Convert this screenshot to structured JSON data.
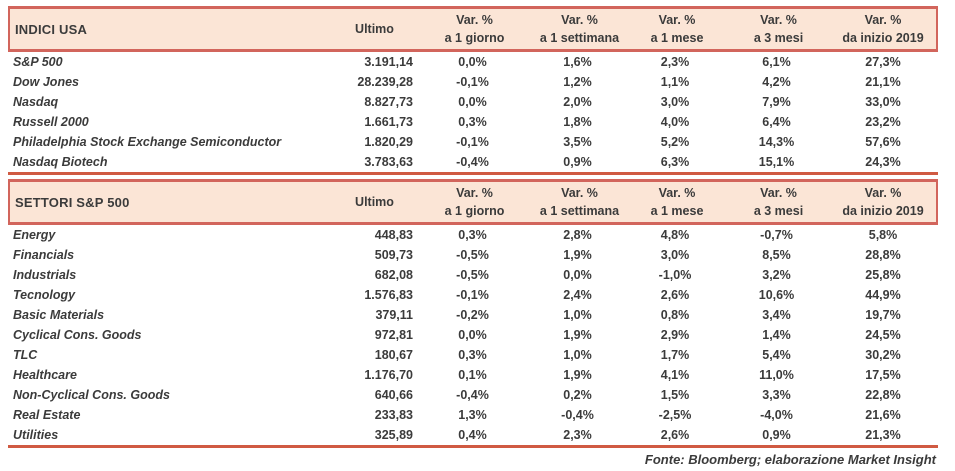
{
  "colors": {
    "band_bg": "#fbe5d6",
    "band_border": "#d2655c",
    "section_line": "#d05a42",
    "text": "#3b3b3b"
  },
  "columns": {
    "ultimo": "Ultimo",
    "var_label": "Var. %",
    "sub": [
      "a 1 giorno",
      "a 1 settimana",
      "a 1 mese",
      "a 3 mesi",
      "da inizio 2019"
    ]
  },
  "tables": [
    {
      "title": "INDICI USA",
      "rows": [
        {
          "name": "S&P 500",
          "ultimo": "3.191,14",
          "vals": [
            "0,0%",
            "1,6%",
            "2,3%",
            "6,1%",
            "27,3%"
          ]
        },
        {
          "name": "Dow Jones",
          "ultimo": "28.239,28",
          "vals": [
            "-0,1%",
            "1,2%",
            "1,1%",
            "4,2%",
            "21,1%"
          ]
        },
        {
          "name": "Nasdaq",
          "ultimo": "8.827,73",
          "vals": [
            "0,0%",
            "2,0%",
            "3,0%",
            "7,9%",
            "33,0%"
          ]
        },
        {
          "name": "Russell 2000",
          "ultimo": "1.661,73",
          "vals": [
            "0,3%",
            "1,8%",
            "4,0%",
            "6,4%",
            "23,2%"
          ]
        },
        {
          "name": "Philadelphia Stock Exchange Semiconductor",
          "ultimo": "1.820,29",
          "vals": [
            "-0,1%",
            "3,5%",
            "5,2%",
            "14,3%",
            "57,6%"
          ]
        },
        {
          "name": "Nasdaq Biotech",
          "ultimo": "3.783,63",
          "vals": [
            "-0,4%",
            "0,9%",
            "6,3%",
            "15,1%",
            "24,3%"
          ]
        }
      ]
    },
    {
      "title": "SETTORI S&P 500",
      "rows": [
        {
          "name": "Energy",
          "ultimo": "448,83",
          "vals": [
            "0,3%",
            "2,8%",
            "4,8%",
            "-0,7%",
            "5,8%"
          ]
        },
        {
          "name": "Financials",
          "ultimo": "509,73",
          "vals": [
            "-0,5%",
            "1,9%",
            "3,0%",
            "8,5%",
            "28,8%"
          ]
        },
        {
          "name": "Industrials",
          "ultimo": "682,08",
          "vals": [
            "-0,5%",
            "0,0%",
            "-1,0%",
            "3,2%",
            "25,8%"
          ]
        },
        {
          "name": "Tecnology",
          "ultimo": "1.576,83",
          "vals": [
            "-0,1%",
            "2,4%",
            "2,6%",
            "10,6%",
            "44,9%"
          ]
        },
        {
          "name": "Basic Materials",
          "ultimo": "379,11",
          "vals": [
            "-0,2%",
            "1,0%",
            "0,8%",
            "3,4%",
            "19,7%"
          ]
        },
        {
          "name": "Cyclical Cons. Goods",
          "ultimo": "972,81",
          "vals": [
            "0,0%",
            "1,9%",
            "2,9%",
            "1,4%",
            "24,5%"
          ]
        },
        {
          "name": "TLC",
          "ultimo": "180,67",
          "vals": [
            "0,3%",
            "1,0%",
            "1,7%",
            "5,4%",
            "30,2%"
          ]
        },
        {
          "name": "Healthcare",
          "ultimo": "1.176,70",
          "vals": [
            "0,1%",
            "1,9%",
            "4,1%",
            "11,0%",
            "17,5%"
          ]
        },
        {
          "name": "Non-Cyclical Cons. Goods",
          "ultimo": "640,66",
          "vals": [
            "-0,4%",
            "0,2%",
            "1,5%",
            "3,3%",
            "22,8%"
          ]
        },
        {
          "name": "Real Estate",
          "ultimo": "233,83",
          "vals": [
            "1,3%",
            "-0,4%",
            "-2,5%",
            "-4,0%",
            "21,6%"
          ]
        },
        {
          "name": "Utilities",
          "ultimo": "325,89",
          "vals": [
            "0,4%",
            "2,3%",
            "2,6%",
            "0,9%",
            "21,3%"
          ]
        }
      ]
    }
  ],
  "footer": {
    "text": "Fonte: Bloomberg; elaborazione Market Insight"
  }
}
